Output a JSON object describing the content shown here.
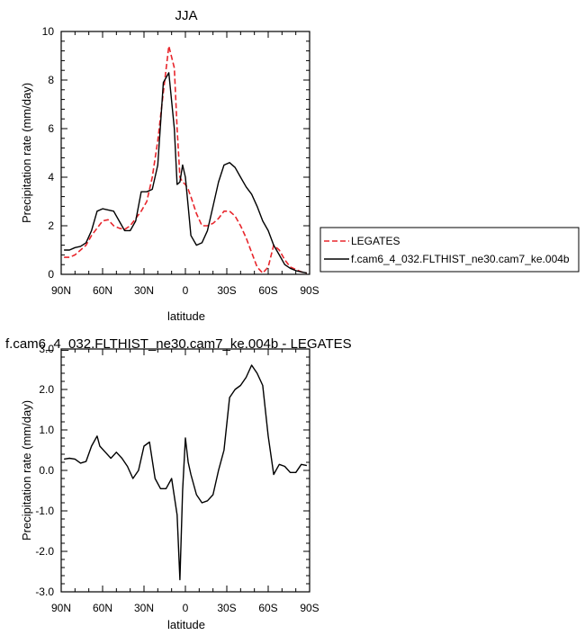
{
  "chart_data": [
    {
      "type": "line",
      "title": "JJA",
      "xlabel": "latitude",
      "ylabel": "Precipitation rate (mm/day)",
      "xlim": [
        90,
        -90
      ],
      "ylim": [
        0,
        10
      ],
      "x_tick_values": [
        90,
        60,
        30,
        0,
        -30,
        -60,
        -90
      ],
      "x_tick_labels": [
        "90N",
        "60N",
        "30N",
        "0",
        "30S",
        "60S",
        "90S"
      ],
      "y_tick_values": [
        0,
        2,
        4,
        6,
        8,
        10
      ],
      "y_tick_labels": [
        "0",
        "2",
        "4",
        "6",
        "8",
        "10"
      ],
      "legend_position": "right",
      "series": [
        {
          "name": "LEGATES",
          "color": "#e8262c",
          "style": "dashed",
          "x": [
            88,
            84,
            80,
            76,
            72,
            68,
            64,
            60,
            56,
            52,
            48,
            44,
            40,
            36,
            32,
            28,
            24,
            20,
            16,
            12,
            8,
            6,
            4,
            2,
            0,
            -2,
            -4,
            -8,
            -12,
            -16,
            -20,
            -24,
            -28,
            -32,
            -36,
            -40,
            -44,
            -48,
            -52,
            -56,
            -60,
            -64,
            -68,
            -72,
            -76,
            -80,
            -84,
            -88
          ],
          "y": [
            0.7,
            0.7,
            0.8,
            1.0,
            1.2,
            1.6,
            1.9,
            2.2,
            2.25,
            2.0,
            1.9,
            1.85,
            2.0,
            2.3,
            2.6,
            3.0,
            4.0,
            5.5,
            7.5,
            9.4,
            8.5,
            6.0,
            4.0,
            3.8,
            3.7,
            3.5,
            3.2,
            2.5,
            2.0,
            2.0,
            2.1,
            2.3,
            2.6,
            2.6,
            2.4,
            2.0,
            1.5,
            0.9,
            0.3,
            0.05,
            0.3,
            1.2,
            1.0,
            0.6,
            0.3,
            0.2,
            0.1,
            0.05
          ]
        },
        {
          "name": "f.cam6_4_032.FLTHIST_ne30.cam7_ke.004b",
          "color": "#000000",
          "style": "solid",
          "x": [
            88,
            84,
            80,
            76,
            72,
            68,
            64,
            60,
            56,
            52,
            48,
            44,
            40,
            36,
            32,
            28,
            24,
            20,
            16,
            12,
            8,
            6,
            4,
            2,
            0,
            -2,
            -4,
            -8,
            -12,
            -16,
            -20,
            -24,
            -28,
            -32,
            -36,
            -40,
            -44,
            -48,
            -52,
            -56,
            -60,
            -64,
            -68,
            -72,
            -76,
            -80,
            -84,
            -88
          ],
          "y": [
            1.0,
            1.0,
            1.1,
            1.15,
            1.3,
            1.8,
            2.6,
            2.7,
            2.65,
            2.6,
            2.2,
            1.8,
            1.8,
            2.2,
            3.4,
            3.4,
            3.5,
            4.5,
            7.9,
            8.3,
            6.0,
            3.7,
            3.8,
            4.5,
            4.0,
            2.8,
            1.6,
            1.2,
            1.3,
            1.8,
            2.8,
            3.8,
            4.5,
            4.6,
            4.4,
            4.0,
            3.6,
            3.3,
            2.8,
            2.2,
            1.8,
            1.2,
            0.8,
            0.4,
            0.25,
            0.15,
            0.1,
            0.05
          ]
        }
      ]
    },
    {
      "type": "line",
      "title": "f.cam6_4_032.FLTHIST_ne30.cam7_ke.004b - LEGATES",
      "xlabel": "latitude",
      "ylabel": "Precipitation rate (mm/day)",
      "xlim": [
        90,
        -90
      ],
      "ylim": [
        -3,
        3
      ],
      "x_tick_values": [
        90,
        60,
        30,
        0,
        -30,
        -60,
        -90
      ],
      "x_tick_labels": [
        "90N",
        "60N",
        "30N",
        "0",
        "30S",
        "60S",
        "90S"
      ],
      "y_tick_values": [
        -3,
        -2,
        -1,
        0,
        1,
        2,
        3
      ],
      "y_tick_labels": [
        "-3.0",
        "-2.0",
        "-1.0",
        "0.0",
        "1.0",
        "2.0",
        "3.0"
      ],
      "series": [
        {
          "color": "#000000",
          "style": "solid",
          "x": [
            88,
            84,
            80,
            76,
            72,
            68,
            64,
            62,
            58,
            54,
            50,
            46,
            42,
            38,
            34,
            30,
            26,
            22,
            18,
            14,
            10,
            6,
            4,
            2,
            0,
            -2,
            -4,
            -8,
            -12,
            -16,
            -20,
            -24,
            -28,
            -32,
            -36,
            -40,
            -44,
            -48,
            -52,
            -56,
            -60,
            -64,
            -68,
            -72,
            -76,
            -80,
            -84,
            -88
          ],
          "y": [
            0.28,
            0.3,
            0.28,
            0.18,
            0.22,
            0.6,
            0.85,
            0.6,
            0.45,
            0.3,
            0.45,
            0.3,
            0.1,
            -0.2,
            0.0,
            0.6,
            0.7,
            -0.2,
            -0.45,
            -0.45,
            -0.2,
            -1.1,
            -2.7,
            -0.5,
            0.8,
            0.2,
            -0.1,
            -0.6,
            -0.8,
            -0.75,
            -0.6,
            0.0,
            0.5,
            1.8,
            2.0,
            2.1,
            2.3,
            2.6,
            2.4,
            2.1,
            0.85,
            -0.1,
            0.15,
            0.1,
            -0.05,
            -0.05,
            0.15,
            0.12
          ]
        }
      ]
    }
  ]
}
